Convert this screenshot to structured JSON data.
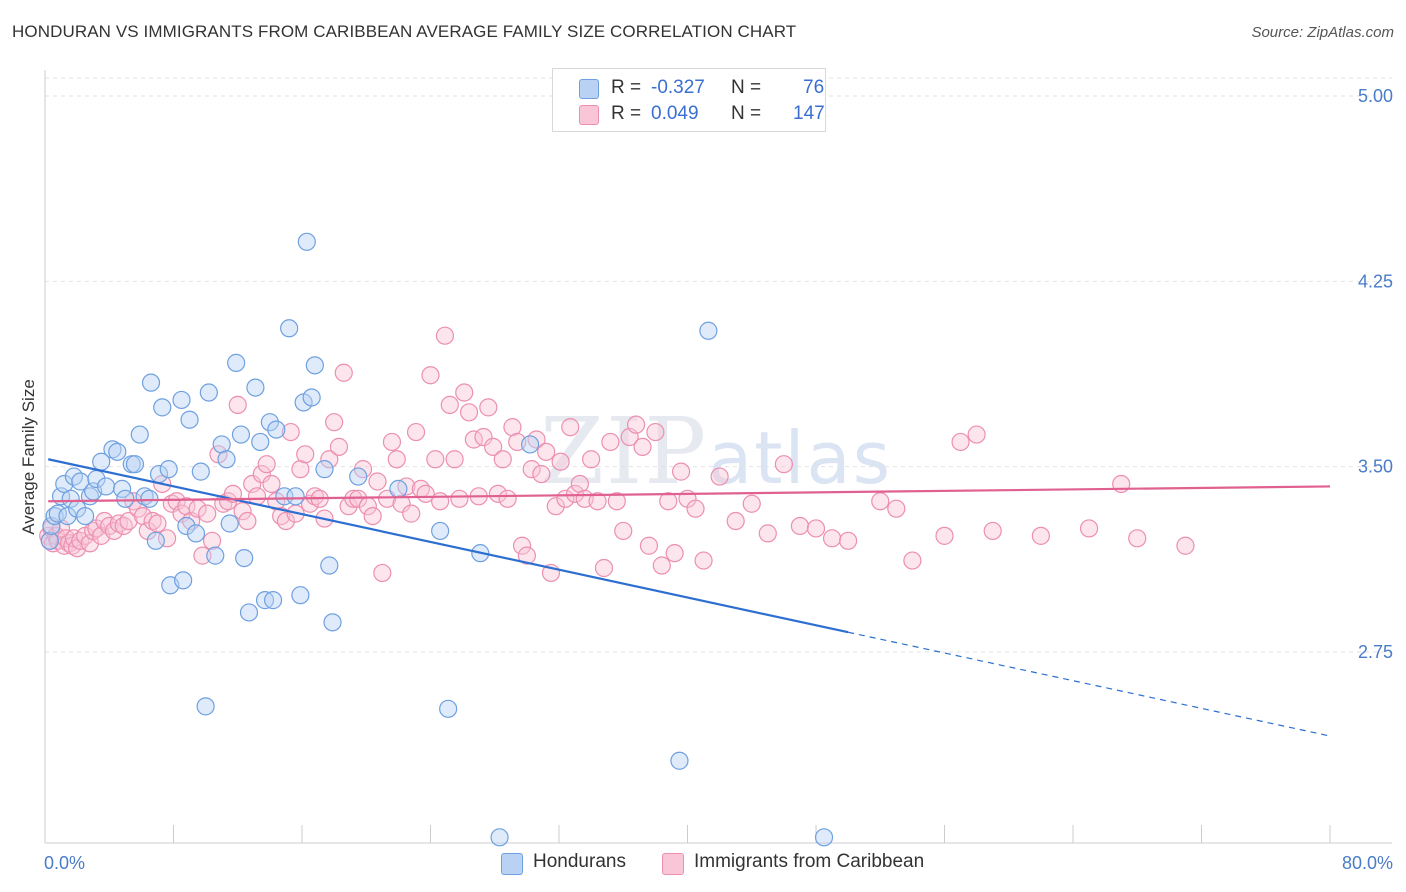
{
  "title": "HONDURAN VS IMMIGRANTS FROM CARIBBEAN AVERAGE FAMILY SIZE CORRELATION CHART",
  "source": "Source: ZipAtlas.com",
  "watermark": {
    "zip": "ZIP",
    "atlas": "atlas"
  },
  "legend": {
    "series1": {
      "r_label": "R =",
      "r_value": "-0.327",
      "n_label": "N =",
      "n_value": "76"
    },
    "series2": {
      "r_label": "R =",
      "r_value": "0.049",
      "n_label": "N =",
      "n_value": "147"
    }
  },
  "bottom_legend": {
    "series1": "Hondurans",
    "series2": "Immigrants from Caribbean"
  },
  "chart_data": {
    "type": "scatter",
    "title": "HONDURAN VS IMMIGRANTS FROM CARIBBEAN AVERAGE FAMILY SIZE CORRELATION CHART",
    "xlabel": "",
    "ylabel": "Average Family Size",
    "xlim": [
      0,
      80
    ],
    "ylim": [
      2.0,
      5.1
    ],
    "x_tick_labels": [
      "0.0%",
      "80.0%"
    ],
    "y_ticks": [
      2.75,
      3.5,
      4.25,
      5.0
    ],
    "y_tick_labels": [
      "2.75",
      "3.50",
      "4.25",
      "5.00"
    ],
    "grid": true,
    "colors": {
      "series1": "#6fa0e0",
      "series1_fill": "#b9d2f3",
      "series1_line": "#2d6fd1",
      "series2": "#ec8fb0",
      "series2_fill": "#f8c6d7",
      "series2_line": "#e0608f"
    },
    "series": [
      {
        "name": "Hondurans",
        "trend": {
          "x0": 0.2,
          "y0": 3.53,
          "x1": 50,
          "y1": 2.83,
          "dash_to_x": 80,
          "dash_to_y": 2.41
        },
        "points": [
          [
            0.3,
            3.2
          ],
          [
            0.4,
            3.26
          ],
          [
            0.6,
            3.3
          ],
          [
            0.8,
            3.31
          ],
          [
            1.0,
            3.38
          ],
          [
            1.2,
            3.43
          ],
          [
            1.4,
            3.3
          ],
          [
            1.6,
            3.37
          ],
          [
            1.8,
            3.46
          ],
          [
            2.0,
            3.33
          ],
          [
            2.2,
            3.44
          ],
          [
            2.5,
            3.3
          ],
          [
            2.8,
            3.38
          ],
          [
            3.0,
            3.4
          ],
          [
            3.2,
            3.45
          ],
          [
            3.5,
            3.52
          ],
          [
            3.8,
            3.42
          ],
          [
            4.2,
            3.57
          ],
          [
            4.5,
            3.56
          ],
          [
            4.8,
            3.41
          ],
          [
            5.0,
            3.37
          ],
          [
            5.4,
            3.51
          ],
          [
            5.6,
            3.51
          ],
          [
            5.9,
            3.63
          ],
          [
            6.2,
            3.38
          ],
          [
            6.5,
            3.37
          ],
          [
            6.6,
            3.84
          ],
          [
            6.9,
            3.2
          ],
          [
            7.1,
            3.47
          ],
          [
            7.3,
            3.74
          ],
          [
            7.7,
            3.49
          ],
          [
            7.8,
            3.02
          ],
          [
            8.5,
            3.77
          ],
          [
            8.6,
            3.04
          ],
          [
            8.8,
            3.26
          ],
          [
            9.0,
            3.69
          ],
          [
            9.4,
            3.23
          ],
          [
            9.7,
            3.48
          ],
          [
            10.0,
            2.53
          ],
          [
            10.2,
            3.8
          ],
          [
            10.6,
            3.14
          ],
          [
            11.0,
            3.59
          ],
          [
            11.3,
            3.53
          ],
          [
            11.5,
            3.27
          ],
          [
            11.9,
            3.92
          ],
          [
            12.2,
            3.63
          ],
          [
            12.4,
            3.13
          ],
          [
            12.7,
            2.91
          ],
          [
            13.1,
            3.82
          ],
          [
            13.4,
            3.6
          ],
          [
            13.7,
            2.96
          ],
          [
            14.0,
            3.68
          ],
          [
            14.2,
            2.96
          ],
          [
            14.4,
            3.65
          ],
          [
            14.9,
            3.38
          ],
          [
            15.2,
            4.06
          ],
          [
            15.6,
            3.38
          ],
          [
            15.9,
            2.98
          ],
          [
            16.1,
            3.76
          ],
          [
            16.3,
            4.41
          ],
          [
            16.6,
            3.78
          ],
          [
            16.8,
            3.91
          ],
          [
            17.4,
            3.49
          ],
          [
            17.7,
            3.1
          ],
          [
            17.9,
            2.87
          ],
          [
            19.5,
            3.46
          ],
          [
            22.0,
            3.41
          ],
          [
            24.6,
            3.24
          ],
          [
            25.1,
            2.52
          ],
          [
            27.1,
            3.15
          ],
          [
            28.3,
            2.0
          ],
          [
            30.2,
            3.59
          ],
          [
            39.5,
            2.31
          ],
          [
            41.3,
            4.05
          ],
          [
            48.5,
            2.0
          ]
        ]
      },
      {
        "name": "Immigrants from Caribbean",
        "trend": {
          "x0": 0.2,
          "y0": 3.36,
          "x1": 80,
          "y1": 3.42
        },
        "points": [
          [
            0.2,
            3.22
          ],
          [
            0.3,
            3.2
          ],
          [
            0.4,
            3.25
          ],
          [
            0.5,
            3.19
          ],
          [
            0.7,
            3.22
          ],
          [
            0.8,
            3.2
          ],
          [
            1.0,
            3.25
          ],
          [
            1.2,
            3.18
          ],
          [
            1.3,
            3.21
          ],
          [
            1.5,
            3.19
          ],
          [
            1.7,
            3.18
          ],
          [
            1.8,
            3.21
          ],
          [
            2.0,
            3.17
          ],
          [
            2.2,
            3.2
          ],
          [
            2.5,
            3.22
          ],
          [
            2.8,
            3.19
          ],
          [
            3.0,
            3.24
          ],
          [
            3.2,
            3.25
          ],
          [
            3.5,
            3.22
          ],
          [
            3.7,
            3.28
          ],
          [
            4.0,
            3.26
          ],
          [
            4.3,
            3.24
          ],
          [
            4.6,
            3.27
          ],
          [
            4.9,
            3.26
          ],
          [
            5.2,
            3.28
          ],
          [
            5.5,
            3.36
          ],
          [
            5.8,
            3.33
          ],
          [
            6.1,
            3.3
          ],
          [
            6.4,
            3.24
          ],
          [
            6.7,
            3.28
          ],
          [
            7.0,
            3.27
          ],
          [
            7.3,
            3.43
          ],
          [
            7.6,
            3.21
          ],
          [
            7.9,
            3.35
          ],
          [
            8.2,
            3.36
          ],
          [
            8.5,
            3.31
          ],
          [
            8.8,
            3.34
          ],
          [
            9.1,
            3.28
          ],
          [
            9.5,
            3.33
          ],
          [
            9.8,
            3.14
          ],
          [
            10.1,
            3.31
          ],
          [
            10.4,
            3.2
          ],
          [
            10.8,
            3.55
          ],
          [
            11.1,
            3.35
          ],
          [
            11.4,
            3.36
          ],
          [
            11.7,
            3.39
          ],
          [
            12.0,
            3.75
          ],
          [
            12.3,
            3.32
          ],
          [
            12.6,
            3.28
          ],
          [
            12.9,
            3.43
          ],
          [
            13.2,
            3.38
          ],
          [
            13.5,
            3.47
          ],
          [
            13.8,
            3.51
          ],
          [
            14.1,
            3.43
          ],
          [
            14.4,
            3.36
          ],
          [
            14.7,
            3.3
          ],
          [
            15.0,
            3.28
          ],
          [
            15.3,
            3.64
          ],
          [
            15.6,
            3.31
          ],
          [
            15.9,
            3.49
          ],
          [
            16.2,
            3.55
          ],
          [
            16.5,
            3.35
          ],
          [
            16.8,
            3.38
          ],
          [
            17.1,
            3.37
          ],
          [
            17.4,
            3.29
          ],
          [
            17.7,
            3.53
          ],
          [
            18.0,
            3.68
          ],
          [
            18.3,
            3.58
          ],
          [
            18.6,
            3.88
          ],
          [
            18.9,
            3.34
          ],
          [
            19.2,
            3.37
          ],
          [
            19.5,
            3.37
          ],
          [
            19.8,
            3.49
          ],
          [
            20.1,
            3.34
          ],
          [
            20.4,
            3.3
          ],
          [
            20.7,
            3.44
          ],
          [
            21.0,
            3.07
          ],
          [
            21.3,
            3.37
          ],
          [
            21.6,
            3.6
          ],
          [
            21.9,
            3.53
          ],
          [
            22.2,
            3.35
          ],
          [
            22.5,
            3.42
          ],
          [
            22.8,
            3.31
          ],
          [
            23.1,
            3.64
          ],
          [
            23.4,
            3.41
          ],
          [
            23.7,
            3.39
          ],
          [
            24.0,
            3.87
          ],
          [
            24.3,
            3.53
          ],
          [
            24.6,
            3.36
          ],
          [
            24.9,
            4.03
          ],
          [
            25.2,
            3.75
          ],
          [
            25.5,
            3.53
          ],
          [
            25.8,
            3.37
          ],
          [
            26.1,
            3.8
          ],
          [
            26.4,
            3.72
          ],
          [
            26.7,
            3.61
          ],
          [
            27.0,
            3.38
          ],
          [
            27.3,
            3.62
          ],
          [
            27.6,
            3.74
          ],
          [
            27.9,
            3.58
          ],
          [
            28.2,
            3.39
          ],
          [
            28.5,
            3.53
          ],
          [
            28.8,
            3.37
          ],
          [
            29.1,
            3.66
          ],
          [
            29.4,
            3.6
          ],
          [
            29.7,
            3.18
          ],
          [
            30.0,
            3.14
          ],
          [
            30.3,
            3.49
          ],
          [
            30.6,
            3.61
          ],
          [
            30.9,
            3.47
          ],
          [
            31.2,
            3.56
          ],
          [
            31.5,
            3.07
          ],
          [
            31.8,
            3.34
          ],
          [
            32.1,
            3.52
          ],
          [
            32.4,
            3.37
          ],
          [
            32.7,
            3.66
          ],
          [
            33.0,
            3.39
          ],
          [
            33.3,
            3.43
          ],
          [
            33.6,
            3.37
          ],
          [
            34.0,
            3.53
          ],
          [
            34.4,
            3.36
          ],
          [
            34.8,
            3.09
          ],
          [
            35.2,
            3.6
          ],
          [
            35.6,
            3.36
          ],
          [
            36.0,
            3.24
          ],
          [
            36.4,
            3.62
          ],
          [
            36.8,
            3.67
          ],
          [
            37.2,
            3.58
          ],
          [
            37.6,
            3.18
          ],
          [
            38.0,
            3.64
          ],
          [
            38.4,
            3.1
          ],
          [
            38.8,
            3.36
          ],
          [
            39.2,
            3.15
          ],
          [
            39.6,
            3.48
          ],
          [
            40.0,
            3.37
          ],
          [
            40.5,
            3.33
          ],
          [
            41.0,
            3.12
          ],
          [
            42.0,
            3.46
          ],
          [
            43.0,
            3.28
          ],
          [
            44.0,
            3.35
          ],
          [
            45.0,
            3.23
          ],
          [
            46.0,
            3.51
          ],
          [
            47.0,
            3.26
          ],
          [
            48.0,
            3.25
          ],
          [
            49.0,
            3.21
          ],
          [
            50.0,
            3.2
          ],
          [
            52.0,
            3.36
          ],
          [
            53.0,
            3.33
          ],
          [
            54.0,
            3.12
          ],
          [
            56.0,
            3.22
          ],
          [
            57.0,
            3.6
          ],
          [
            58.0,
            3.63
          ],
          [
            59.0,
            3.24
          ],
          [
            62.0,
            3.22
          ],
          [
            65.0,
            3.25
          ],
          [
            67.0,
            3.43
          ],
          [
            68.0,
            3.21
          ],
          [
            71.0,
            3.18
          ]
        ]
      }
    ]
  }
}
